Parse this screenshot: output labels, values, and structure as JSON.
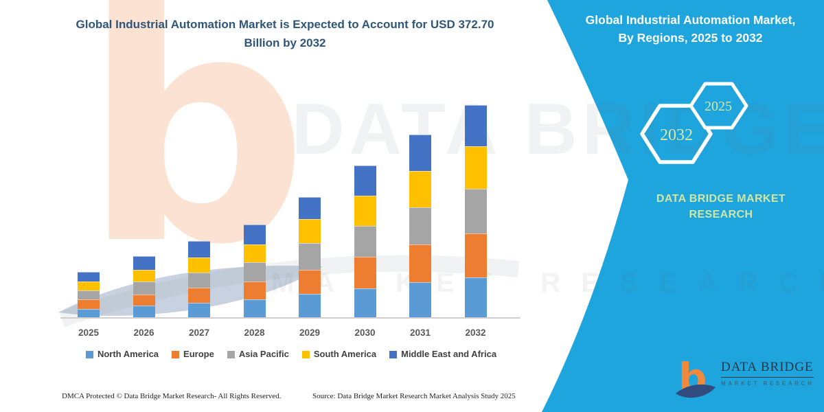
{
  "colors": {
    "panel_teal": "#1fa5dd",
    "main_title": "#2f5679",
    "badge_text_green": "#d6e8a8",
    "logo_orange": "#ef8a3d",
    "logo_navy": "#314b7e"
  },
  "main": {
    "title_line1": "Global Industrial Automation Market is Expected to Account for USD 372.70",
    "title_line2": "Billion by 2032",
    "footer_left": "DMCA Protected © Data Bridge Market Research-  All Rights Reserved.",
    "footer_right": "Source: Data Bridge Market Research  Market Analysis Study 2025"
  },
  "watermark": {
    "text_top": "DATA BRIDGE",
    "text_bottom": "MARKET RESEARCH",
    "letter_b": "b"
  },
  "side_panel": {
    "title_line1": "Global Industrial Automation Market,",
    "title_line2": "By Regions, 2025 to 2032",
    "badge_back_label": "2032",
    "badge_front_label": "2025",
    "brand_line1": "DATA BRIDGE MARKET",
    "brand_line2": "RESEARCH",
    "logo_name": "DATA BRIDGE",
    "logo_tagline": "MARKET RESEARCH"
  },
  "chart_data": {
    "type": "bar",
    "stacked": true,
    "title": "Global Industrial Automation Market is Expected to Account for USD 372.70 Billion by 2032",
    "value_unit": "USD Billion",
    "categories": [
      "2025",
      "2026",
      "2027",
      "2028",
      "2029",
      "2030",
      "2031",
      "2032"
    ],
    "series": [
      {
        "name": "North America",
        "color": "#5B9BD5",
        "values": [
          16.1,
          21.4,
          26.9,
          32.2,
          42.2,
          51.5,
          62.3,
          71.2
        ]
      },
      {
        "name": "Europe",
        "color": "#ED7D31",
        "values": [
          16.1,
          20.1,
          26.1,
          31.0,
          42.2,
          55.1,
          66.3,
          77.2
        ]
      },
      {
        "name": "Asia Pacific",
        "color": "#A5A5A5",
        "values": [
          16.1,
          22.1,
          26.1,
          34.6,
          46.2,
          55.1,
          65.1,
          77.6
        ]
      },
      {
        "name": "South America",
        "color": "#FFC000",
        "values": [
          15.3,
          20.1,
          27.3,
          31.0,
          43.0,
          52.3,
          64.3,
          75.2
        ]
      },
      {
        "name": "Middle East and Africa",
        "color": "#4472C4",
        "values": [
          16.9,
          24.1,
          28.1,
          34.2,
          38.6,
          53.5,
          63.5,
          71.5
        ]
      }
    ],
    "totals_by_year": [
      80.5,
      107.8,
      134.5,
      163.0,
      212.2,
      267.5,
      321.5,
      372.7
    ],
    "ylim": [
      0,
      380
    ],
    "grid": false,
    "y_axis_visible": false,
    "legend_position": "bottom"
  }
}
